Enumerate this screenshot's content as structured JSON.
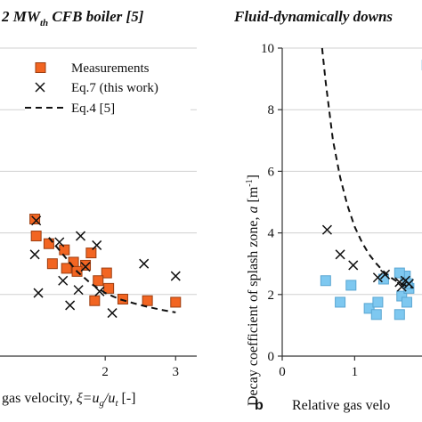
{
  "chart_data": [
    {
      "type": "scatter",
      "title": "2 MW",
      "title_sub": "th",
      "title_tail": " CFB boiler [5]",
      "xlabel": "gas velocity, ",
      "xlabel_symbol": "ξ=u",
      "xlabel_sub1": "g",
      "xlabel_mid": "/u",
      "xlabel_sub2": "t",
      "xlabel_unit": " [-]",
      "xlim": [
        0,
        3.3
      ],
      "ylim": [
        0,
        10
      ],
      "xticks": [
        "2",
        "3"
      ],
      "grid": "horizontal",
      "legend_position": "top-right",
      "legend": [
        "Measurements",
        "Eq.7 (this work)",
        "Eq.4 [5]"
      ],
      "series": [
        {
          "name": "Measurements",
          "marker": "square",
          "color": "#f26522",
          "edge": "#9c3d10",
          "points": [
            [
              1.0,
              4.45
            ],
            [
              1.02,
              3.9
            ],
            [
              1.2,
              3.65
            ],
            [
              1.42,
              3.45
            ],
            [
              1.55,
              3.05
            ],
            [
              1.8,
              3.35
            ],
            [
              1.25,
              3.0
            ],
            [
              1.45,
              2.85
            ],
            [
              1.72,
              2.95
            ],
            [
              1.6,
              2.75
            ],
            [
              2.02,
              2.7
            ],
            [
              1.9,
              2.45
            ],
            [
              2.05,
              2.2
            ],
            [
              2.25,
              1.85
            ],
            [
              1.85,
              1.8
            ],
            [
              2.6,
              1.8
            ],
            [
              3.0,
              1.75
            ]
          ]
        },
        {
          "name": "Eq.7 (this work)",
          "marker": "x",
          "color": "#111111",
          "points": [
            [
              1.02,
              4.4
            ],
            [
              1.0,
              3.3
            ],
            [
              1.05,
              2.05
            ],
            [
              1.35,
              3.7
            ],
            [
              1.65,
              3.9
            ],
            [
              1.88,
              3.6
            ],
            [
              1.72,
              2.9
            ],
            [
              1.4,
              2.45
            ],
            [
              1.62,
              2.15
            ],
            [
              1.92,
              2.1
            ],
            [
              1.5,
              1.65
            ],
            [
              2.1,
              1.4
            ],
            [
              2.55,
              3.0
            ],
            [
              3.0,
              2.6
            ]
          ]
        },
        {
          "name": "Eq.4 [5]",
          "line": "dashed",
          "color": "#111111",
          "points": [
            [
              1.2,
              3.85
            ],
            [
              1.4,
              3.3
            ],
            [
              1.6,
              2.75
            ],
            [
              1.8,
              2.35
            ],
            [
              2.0,
              2.05
            ],
            [
              2.2,
              1.85
            ],
            [
              2.4,
              1.72
            ],
            [
              2.6,
              1.6
            ],
            [
              2.8,
              1.5
            ],
            [
              3.0,
              1.42
            ]
          ]
        }
      ]
    },
    {
      "type": "scatter",
      "title": "Fluid-dynamically downs",
      "panel_label": "b",
      "ylabel": "Decay coefficient of splash zone, ",
      "ylabel_symbol": "a",
      "ylabel_unit": " [m",
      "ylabel_exp": "-1",
      "ylabel_close": "]",
      "xlabel": "Relative gas velo",
      "xlim": [
        0,
        2.2
      ],
      "ylim": [
        0,
        10
      ],
      "xticks": [
        "0",
        "1"
      ],
      "yticks": [
        "0",
        "2",
        "4",
        "6",
        "8",
        "10"
      ],
      "grid": "horizontal",
      "series": [
        {
          "name": "",
          "marker": "square",
          "color": "#7ec8f0",
          "edge": "#5aa6d2",
          "points": [
            [
              0.6,
              2.45
            ],
            [
              0.8,
              1.75
            ],
            [
              0.95,
              2.3
            ],
            [
              1.2,
              1.55
            ],
            [
              1.3,
              1.35
            ],
            [
              1.32,
              1.75
            ],
            [
              1.4,
              2.5
            ],
            [
              1.62,
              1.35
            ],
            [
              1.65,
              1.95
            ],
            [
              1.7,
              2.6
            ],
            [
              1.75,
              2.2
            ],
            [
              1.62,
              2.7
            ],
            [
              1.73,
              2.35
            ],
            [
              2.0,
              9.45
            ],
            [
              1.72,
              1.75
            ]
          ]
        },
        {
          "name": "",
          "marker": "x",
          "color": "#111111",
          "points": [
            [
              0.62,
              4.1
            ],
            [
              0.8,
              3.3
            ],
            [
              0.98,
              2.95
            ],
            [
              1.32,
              2.55
            ],
            [
              1.42,
              2.65
            ],
            [
              1.62,
              2.4
            ],
            [
              1.65,
              2.25
            ],
            [
              1.7,
              2.45
            ],
            [
              1.75,
              2.35
            ],
            [
              2.0,
              8.7
            ]
          ]
        },
        {
          "name": "",
          "line": "dashed",
          "color": "#111111",
          "points": [
            [
              0.55,
              10.0
            ],
            [
              0.6,
              8.9
            ],
            [
              0.7,
              7.0
            ],
            [
              0.8,
              5.8
            ],
            [
              0.9,
              4.9
            ],
            [
              1.0,
              4.2
            ],
            [
              1.1,
              3.7
            ],
            [
              1.2,
              3.3
            ],
            [
              1.3,
              3.0
            ],
            [
              1.4,
              2.75
            ],
            [
              1.5,
              2.55
            ],
            [
              1.6,
              2.4
            ],
            [
              1.7,
              2.3
            ],
            [
              1.8,
              2.22
            ]
          ]
        }
      ]
    }
  ]
}
